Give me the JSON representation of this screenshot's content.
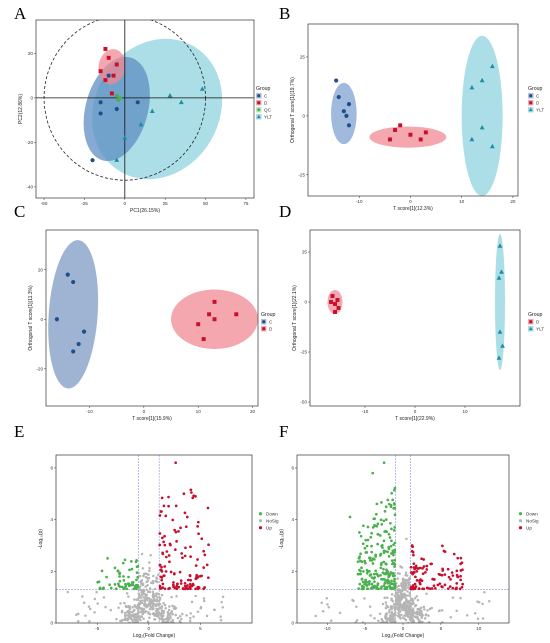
{
  "chart_data": [
    {
      "panel": "A",
      "type": "scatter",
      "xlabel": "PC1(26.15%)",
      "ylabel": "PC2(12.86%)",
      "xlim": [
        -55,
        80
      ],
      "ylim": [
        -45,
        35
      ],
      "xticks": [
        -50,
        -25,
        0,
        25,
        50,
        75
      ],
      "yticks": [
        -40,
        -20,
        0,
        20
      ],
      "legend_title": "Group",
      "legend": [
        {
          "name": "C",
          "color": "#1f4e8c",
          "shape": "circle"
        },
        {
          "name": "D",
          "color": "#c8102e",
          "shape": "square"
        },
        {
          "name": "QC",
          "color": "#4caf50",
          "shape": "diamond"
        },
        {
          "name": "YLT",
          "color": "#1a8fa3",
          "shape": "triangle"
        }
      ],
      "ellipses": [
        {
          "group": "YLT",
          "fill": "#8fd3de",
          "cx": 20,
          "cy": -5,
          "rx": 45,
          "ry": 28,
          "angle": 60
        },
        {
          "group": "C",
          "fill": "#5e8ec2",
          "cx": -5,
          "cy": -5,
          "rx": 33,
          "ry": 14,
          "angle": 75
        },
        {
          "group": "D",
          "fill": "#f08a93",
          "cx": -8,
          "cy": 14,
          "rx": 11,
          "ry": 6,
          "angle": 80
        },
        {
          "group": "QC",
          "fill": "none",
          "dashed": true,
          "cx": 0,
          "cy": 0,
          "rx": 50,
          "ry": 37,
          "angle": 0
        }
      ],
      "series": [
        {
          "name": "C",
          "points": [
            [
              -10,
              10
            ],
            [
              -15,
              -2
            ],
            [
              -5,
              -5
            ],
            [
              8,
              -2
            ],
            [
              -20,
              -28
            ],
            [
              -15,
              -7
            ]
          ]
        },
        {
          "name": "D",
          "points": [
            [
              -15,
              12
            ],
            [
              -10,
              18
            ],
            [
              -5,
              15
            ],
            [
              -12,
              22
            ],
            [
              -7,
              10
            ],
            [
              -12,
              8
            ],
            [
              -8,
              2
            ]
          ]
        },
        {
          "name": "QC",
          "points": [
            [
              -3,
              0
            ],
            [
              -5,
              1
            ],
            [
              -4,
              -1
            ]
          ]
        },
        {
          "name": "YLT",
          "points": [
            [
              48,
              4
            ],
            [
              28,
              1
            ],
            [
              35,
              -2
            ],
            [
              17,
              -6
            ],
            [
              10,
              -12
            ],
            [
              -5,
              -28
            ],
            [
              0,
              -18
            ]
          ]
        }
      ]
    },
    {
      "panel": "B",
      "type": "scatter",
      "xlabel": "T score[1](12.3%)",
      "ylabel": "Orthogonal T score[1](19.7%)",
      "xlim": [
        -20,
        21
      ],
      "ylim": [
        -34,
        39
      ],
      "xticks": [
        -10,
        0,
        10,
        20
      ],
      "yticks": [
        -25,
        0,
        25
      ],
      "legend_title": "Group",
      "legend": [
        {
          "name": "C",
          "color": "#1f4e8c",
          "shape": "circle"
        },
        {
          "name": "D",
          "color": "#c8102e",
          "shape": "square"
        },
        {
          "name": "YLT",
          "color": "#1a8fa3",
          "shape": "triangle"
        }
      ],
      "ellipses": [
        {
          "group": "C",
          "fill": "#7fa3d1",
          "cx": -13,
          "cy": 1,
          "rx": 2.5,
          "ry": 13,
          "angle": 0
        },
        {
          "group": "D",
          "fill": "#f08a93",
          "cx": -0.5,
          "cy": -9,
          "rx": 7.5,
          "ry": 4.5,
          "angle": 0
        },
        {
          "group": "YLT",
          "fill": "#8fd3de",
          "cx": 14,
          "cy": 0,
          "rx": 4,
          "ry": 34,
          "angle": 0
        }
      ],
      "series": [
        {
          "name": "C",
          "points": [
            [
              -14,
              8
            ],
            [
              -13,
              2
            ],
            [
              -12,
              5
            ],
            [
              -12.5,
              0
            ],
            [
              -14.5,
              15
            ],
            [
              -12,
              -4
            ]
          ]
        },
        {
          "name": "D",
          "points": [
            [
              -3,
              -6
            ],
            [
              -2,
              -4
            ],
            [
              0,
              -8
            ],
            [
              2,
              -10
            ],
            [
              3,
              -7
            ],
            [
              -4,
              -10
            ]
          ]
        },
        {
          "name": "YLT",
          "points": [
            [
              12,
              12
            ],
            [
              16,
              21
            ],
            [
              14,
              15
            ],
            [
              14,
              -5
            ],
            [
              12,
              -10
            ],
            [
              16,
              -13
            ]
          ]
        }
      ]
    },
    {
      "panel": "C",
      "type": "scatter",
      "xlabel": "T score[1](15.9%)",
      "ylabel": "Orthogonal T score[1](11.3%)",
      "xlim": [
        -18,
        21
      ],
      "ylim": [
        -35,
        36
      ],
      "xticks": [
        -10,
        0,
        10,
        20
      ],
      "yticks": [
        -20,
        0,
        20
      ],
      "legend_title": "Group",
      "legend": [
        {
          "name": "C",
          "color": "#1f4e8c",
          "shape": "circle"
        },
        {
          "name": "D",
          "color": "#c8102e",
          "shape": "square"
        }
      ],
      "ellipses": [
        {
          "group": "C",
          "fill": "#7f99c4",
          "cx": -13,
          "cy": 2,
          "rx": 4.5,
          "ry": 30,
          "angle": -4
        },
        {
          "group": "D",
          "fill": "#f08a93",
          "cx": 13,
          "cy": 0,
          "rx": 8,
          "ry": 12,
          "angle": 0
        }
      ],
      "series": [
        {
          "name": "C",
          "points": [
            [
              -14,
              18
            ],
            [
              -13,
              15
            ],
            [
              -16,
              0
            ],
            [
              -11,
              -5
            ],
            [
              -12,
              -10
            ],
            [
              -13,
              -13
            ]
          ]
        },
        {
          "name": "D",
          "points": [
            [
              10,
              -2
            ],
            [
              12,
              2
            ],
            [
              13,
              7
            ],
            [
              13,
              0
            ],
            [
              11,
              -8
            ],
            [
              17,
              2
            ]
          ]
        }
      ]
    },
    {
      "panel": "D",
      "type": "scatter",
      "xlabel": "T score[1](22.9%)",
      "ylabel": "Orthogonal T score[1](22.1%)",
      "xlim": [
        -21,
        21
      ],
      "ylim": [
        -52,
        36
      ],
      "xticks": [
        -10,
        0,
        10
      ],
      "yticks": [
        -50,
        -25,
        0,
        25
      ],
      "legend_title": "Group",
      "legend": [
        {
          "name": "D",
          "color": "#c8102e",
          "shape": "square"
        },
        {
          "name": "YLT",
          "color": "#1a8fa3",
          "shape": "triangle"
        }
      ],
      "ellipses": [
        {
          "group": "D",
          "fill": "#f08a93",
          "cx": -16,
          "cy": 0,
          "rx": 1.5,
          "ry": 6,
          "angle": 0
        },
        {
          "group": "YLT",
          "fill": "#8fd3de",
          "cx": 17,
          "cy": 0,
          "rx": 1,
          "ry": 34,
          "angle": 0
        }
      ],
      "series": [
        {
          "name": "D",
          "points": [
            [
              -16.5,
              3
            ],
            [
              -16,
              -1
            ],
            [
              -15.5,
              1
            ],
            [
              -15.3,
              -3
            ],
            [
              -16,
              -5
            ],
            [
              -16.8,
              0
            ]
          ]
        },
        {
          "name": "YLT",
          "points": [
            [
              17,
              28
            ],
            [
              17.3,
              15
            ],
            [
              16.8,
              12
            ],
            [
              17,
              -15
            ],
            [
              17.5,
              -22
            ],
            [
              16.8,
              -28
            ]
          ]
        }
      ]
    },
    {
      "panel": "E",
      "type": "scatter",
      "xlabel": "Log₂(Fold Change)",
      "ylabel": "-Log₁₀(p)",
      "xlim": [
        -9,
        10
      ],
      "ylim": [
        0,
        6.5
      ],
      "xticks": [
        -5,
        0,
        5
      ],
      "yticks": [
        0,
        2,
        4,
        6
      ],
      "thresholds": {
        "x": [
          -1,
          1
        ],
        "y": 1.3
      },
      "legend": [
        {
          "name": "Down",
          "color": "#4caf50"
        },
        {
          "name": "NoSig",
          "color": "#b5b5b5"
        },
        {
          "name": "Up",
          "color": "#c8102e"
        }
      ],
      "generator": {
        "seed": 7,
        "nosig": 340,
        "down": 60,
        "up": 130,
        "down_x": [
          -5,
          -1.05
        ],
        "up_x": [
          1.05,
          5.8
        ],
        "up_ymax": 5.2,
        "down_ymax": 2.7,
        "outliers": [
          [
            2.6,
            6.2
          ],
          [
            3.4,
            5.0
          ],
          [
            -4.0,
            2.5
          ]
        ]
      }
    },
    {
      "panel": "F",
      "type": "scatter",
      "xlabel": "Log₂(Fold Change)",
      "ylabel": "-Log₁₀(p)",
      "xlim": [
        -14,
        14
      ],
      "ylim": [
        0,
        6.5
      ],
      "xticks": [
        -10,
        -5,
        0,
        5,
        10
      ],
      "yticks": [
        0,
        2,
        4,
        6
      ],
      "thresholds": {
        "x": [
          -1,
          1
        ],
        "y": 1.3
      },
      "legend": [
        {
          "name": "Down",
          "color": "#4caf50"
        },
        {
          "name": "NoSig",
          "color": "#b5b5b5"
        },
        {
          "name": "Up",
          "color": "#c8102e"
        }
      ],
      "generator": {
        "seed": 13,
        "nosig": 380,
        "down": 230,
        "up": 110,
        "down_x": [
          -6,
          -1.05
        ],
        "up_x": [
          1.05,
          8
        ],
        "up_ymax": 3.0,
        "down_ymax": 5.6,
        "outliers": [
          [
            -2.5,
            6.2
          ],
          [
            -7.0,
            4.1
          ],
          [
            -4.0,
            5.8
          ]
        ]
      }
    }
  ]
}
